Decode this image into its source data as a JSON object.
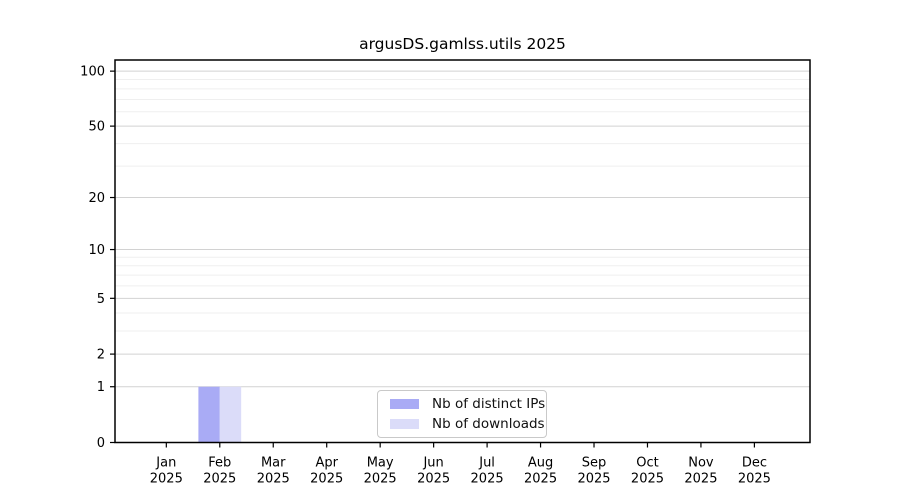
{
  "chart_data": {
    "type": "bar",
    "title": "argusDS.gamlss.utils 2025",
    "x_axis": {
      "months": [
        "Jan",
        "Feb",
        "Mar",
        "Apr",
        "May",
        "Jun",
        "Jul",
        "Aug",
        "Sep",
        "Oct",
        "Nov",
        "Dec"
      ],
      "year": "2025"
    },
    "y_axis": {
      "scale": "log1p",
      "major_ticks": [
        0,
        1,
        2,
        5,
        10,
        20,
        50,
        100
      ],
      "minor_gridlines": [
        3,
        4,
        6,
        7,
        8,
        9,
        30,
        40,
        60,
        70,
        80,
        90
      ],
      "max": 115
    },
    "series": [
      {
        "name": "Nb of distinct IPs",
        "color": "#a9abf5",
        "values": [
          0,
          1,
          0,
          0,
          0,
          0,
          0,
          0,
          0,
          0,
          0,
          0
        ]
      },
      {
        "name": "Nb of downloads",
        "color": "#dbdcf9",
        "values": [
          0,
          1,
          0,
          0,
          0,
          0,
          0,
          0,
          0,
          0,
          0,
          0
        ]
      }
    ],
    "legend_position": "bottom-center",
    "grid": true,
    "colors": {
      "grid_major": "#d2d2d2",
      "grid_minor": "#efefef",
      "frame": "#000000",
      "text": "#000000",
      "legend_border": "#c9c9c9",
      "background": "#ffffff"
    }
  }
}
